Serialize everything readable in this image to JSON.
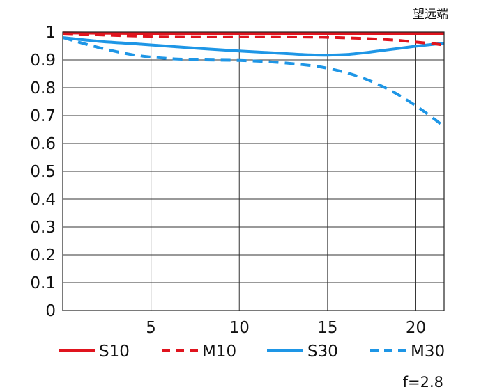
{
  "chart_data": {
    "type": "line",
    "title": "望远端",
    "footnote": "f=2.8",
    "xlabel": "",
    "ylabel": "",
    "xlim": [
      0,
      21.6
    ],
    "ylim": [
      0,
      1
    ],
    "x_ticks": [
      5,
      10,
      15,
      20
    ],
    "x_tick_labels": [
      "5",
      "10",
      "15",
      "20"
    ],
    "y_ticks": [
      0,
      0.1,
      0.2,
      0.3,
      0.4,
      0.5,
      0.6,
      0.7,
      0.8,
      0.9,
      1
    ],
    "y_tick_labels": [
      "0",
      "0.1",
      "0.2",
      "0.3",
      "0.4",
      "0.5",
      "0.6",
      "0.7",
      "0.8",
      "0.9",
      "1"
    ],
    "grid": true,
    "legend_position": "bottom",
    "series": [
      {
        "name": "S10",
        "color": "#e0141e",
        "style": "solid",
        "x": [
          0,
          2,
          4,
          6,
          8,
          10,
          12,
          14,
          16,
          18,
          20,
          21.6
        ],
        "y": [
          0.997,
          0.996,
          0.995,
          0.995,
          0.995,
          0.995,
          0.995,
          0.995,
          0.995,
          0.995,
          0.995,
          0.995
        ]
      },
      {
        "name": "M10",
        "color": "#e0141e",
        "style": "dashed",
        "x": [
          0,
          2,
          4,
          6,
          8,
          10,
          12,
          14,
          15,
          16,
          17,
          18,
          19,
          20,
          21,
          21.6
        ],
        "y": [
          0.995,
          0.99,
          0.986,
          0.984,
          0.983,
          0.983,
          0.983,
          0.982,
          0.981,
          0.979,
          0.977,
          0.974,
          0.97,
          0.964,
          0.958,
          0.953
        ]
      },
      {
        "name": "S30",
        "color": "#1e96e6",
        "style": "solid",
        "x": [
          0,
          2,
          4,
          6,
          8,
          10,
          12,
          14,
          15,
          16,
          17,
          18,
          19,
          20,
          21,
          21.6
        ],
        "y": [
          0.98,
          0.967,
          0.958,
          0.949,
          0.94,
          0.932,
          0.925,
          0.918,
          0.917,
          0.919,
          0.925,
          0.933,
          0.941,
          0.949,
          0.956,
          0.96
        ]
      },
      {
        "name": "M30",
        "color": "#1e96e6",
        "style": "dashed",
        "x": [
          0,
          2,
          4,
          6,
          8,
          10,
          12,
          14,
          15,
          16,
          17,
          18,
          19,
          20,
          21,
          21.6
        ],
        "y": [
          0.98,
          0.945,
          0.918,
          0.905,
          0.9,
          0.898,
          0.892,
          0.88,
          0.87,
          0.855,
          0.835,
          0.808,
          0.775,
          0.735,
          0.69,
          0.66
        ]
      }
    ]
  }
}
